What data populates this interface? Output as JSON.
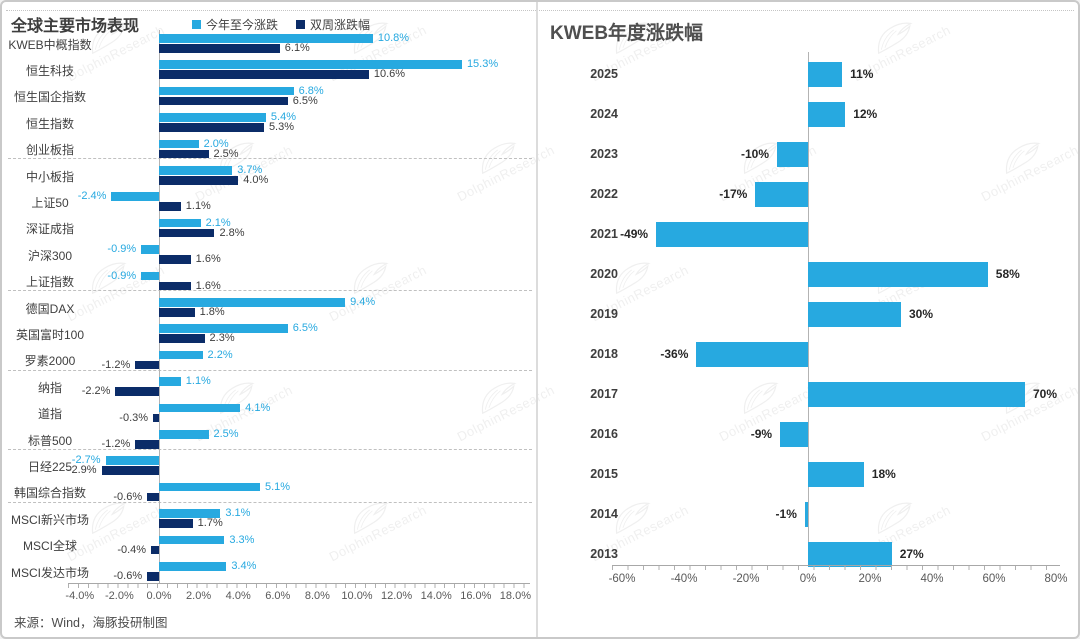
{
  "source": "来源：Wind，海豚投研制图",
  "watermark": {
    "text": "DolphinResearch",
    "logo": "dolphin-logo"
  },
  "divider_color": "#dcdcdc",
  "chart_data": [
    {
      "type": "bar",
      "orientation": "horizontal",
      "title": "全球主要市场表现",
      "legend_position": "top",
      "legend": [
        {
          "label": "今年至今涨跌",
          "color": "#27a9e0"
        },
        {
          "label": "双周涨跌幅",
          "color": "#0b2c68"
        }
      ],
      "categories": [
        "KWEB中概指数",
        "恒生科技",
        "恒生国企指数",
        "恒生指数",
        "创业板指",
        "中小板指",
        "上证50",
        "深证成指",
        "沪深300",
        "上证指数",
        "德国DAX",
        "英国富时100",
        "罗素2000",
        "纳指",
        "道指",
        "标普500",
        "日经225",
        "韩国综合指数",
        "MSCI新兴市场",
        "MSCI全球",
        "MSCI发达市场"
      ],
      "series": [
        {
          "name": "今年至今涨跌",
          "color": "#27a9e0",
          "label_color": "#27a9e0",
          "values": [
            10.8,
            15.3,
            6.8,
            5.4,
            2.0,
            3.7,
            -2.4,
            2.1,
            -0.9,
            -0.9,
            9.4,
            6.5,
            2.2,
            1.1,
            4.1,
            2.5,
            -2.7,
            5.1,
            3.1,
            3.3,
            3.4
          ]
        },
        {
          "name": "双周涨跌幅",
          "color": "#0b2c68",
          "label_color": "#3d3d3d",
          "values": [
            6.1,
            10.6,
            6.5,
            5.3,
            2.5,
            4.0,
            1.1,
            2.8,
            1.6,
            1.6,
            1.8,
            2.3,
            -1.2,
            -2.2,
            -0.3,
            -1.2,
            -2.9,
            -0.6,
            1.7,
            -0.4,
            -0.6
          ]
        }
      ],
      "value_suffix": "%",
      "decimals": 1,
      "xlim": [
        -4,
        18
      ],
      "xticks": [
        "-4.0%",
        "-2.0%",
        "0.0%",
        "2.0%",
        "4.0%",
        "6.0%",
        "8.0%",
        "10.0%",
        "12.0%",
        "14.0%",
        "16.0%",
        "18.0%"
      ],
      "grid": false,
      "separators_after": [
        4,
        9,
        12,
        15,
        17
      ]
    },
    {
      "type": "bar",
      "orientation": "horizontal",
      "title": "KWEB年度涨跌幅",
      "categories": [
        "2025",
        "2024",
        "2023",
        "2022",
        "2021",
        "2020",
        "2019",
        "2018",
        "2017",
        "2016",
        "2015",
        "2014",
        "2013"
      ],
      "values": [
        11,
        12,
        -10,
        -17,
        -49,
        58,
        30,
        -36,
        70,
        -9,
        18,
        -1,
        27
      ],
      "bar_color": "#27a9e0",
      "value_suffix": "%",
      "decimals": 0,
      "xlim": [
        -60,
        80
      ],
      "xticks": [
        "-60%",
        "-40%",
        "-20%",
        "0%",
        "20%",
        "40%",
        "60%",
        "80%"
      ],
      "grid": false
    }
  ]
}
